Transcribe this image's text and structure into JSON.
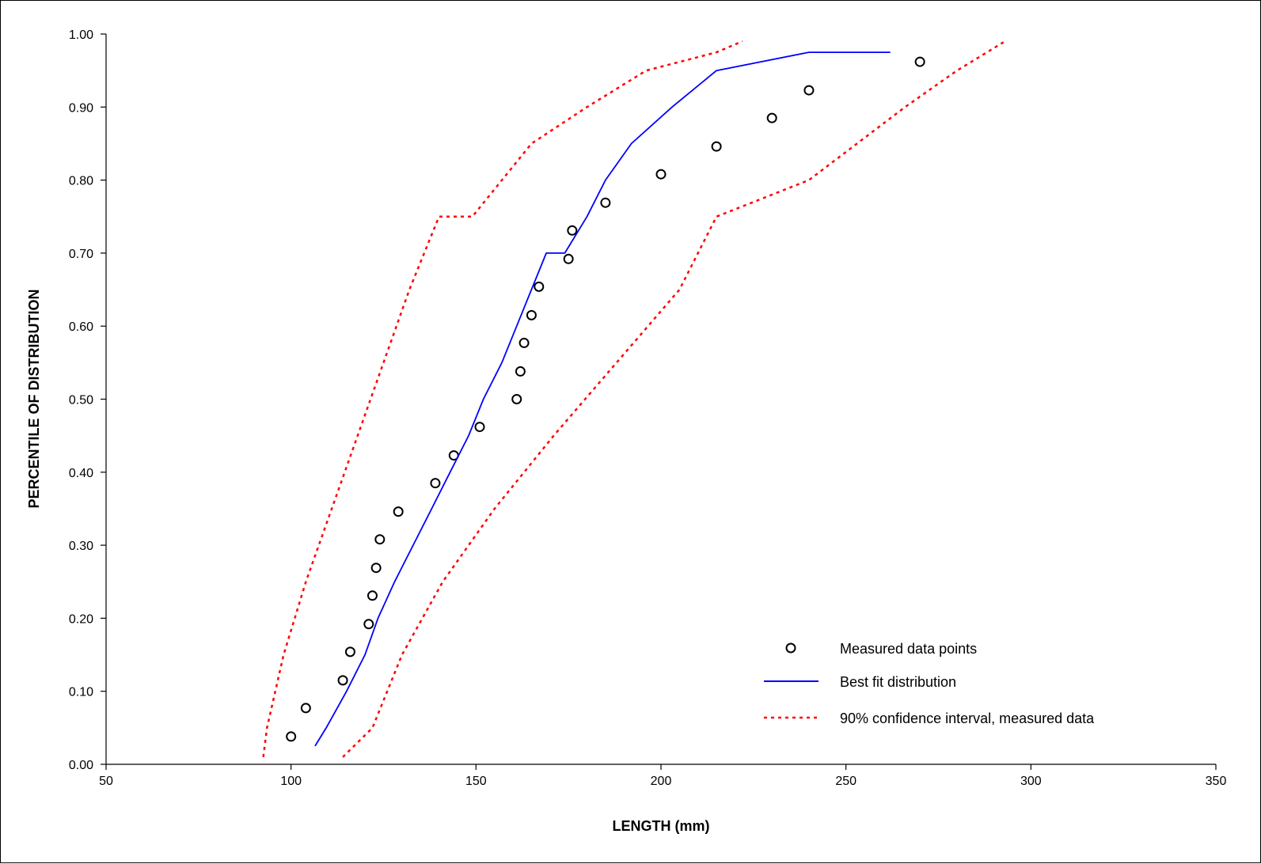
{
  "chart_data": {
    "type": "line",
    "xlabel": "LENGTH (mm)",
    "ylabel": "PERCENTILE OF DISTRIBUTION",
    "xlim": [
      50,
      350
    ],
    "ylim": [
      0,
      1
    ],
    "x_ticks": [
      "50",
      "100",
      "150",
      "200",
      "250",
      "300",
      "350"
    ],
    "y_ticks": [
      "0.00",
      "0.10",
      "0.20",
      "0.30",
      "0.40",
      "0.50",
      "0.60",
      "0.70",
      "0.80",
      "0.90",
      "1.00"
    ],
    "grid": false,
    "legend_position": "bottom-right",
    "series": [
      {
        "name": "Measured data points",
        "style": "markers",
        "marker": "open-circle",
        "color": "#000000",
        "x": [
          100,
          104,
          114,
          116,
          121,
          122,
          123,
          124,
          129,
          139,
          144,
          151,
          161,
          162,
          163,
          165,
          167,
          175,
          176,
          185,
          200,
          215,
          230,
          240,
          270
        ],
        "y": [
          0.038,
          0.077,
          0.115,
          0.154,
          0.192,
          0.231,
          0.269,
          0.308,
          0.346,
          0.385,
          0.423,
          0.462,
          0.5,
          0.538,
          0.577,
          0.615,
          0.654,
          0.692,
          0.731,
          0.769,
          0.808,
          0.846,
          0.885,
          0.923,
          0.962
        ]
      },
      {
        "name": "Best fit distribution",
        "style": "solid",
        "color": "#0000ff",
        "x": [
          106.5,
          109.5,
          115,
          120,
          123.5,
          128,
          133,
          138,
          143,
          148,
          152,
          157,
          161,
          165,
          169,
          174,
          180,
          185,
          192,
          203,
          215,
          240,
          262
        ],
        "y": [
          0.025,
          0.05,
          0.1,
          0.15,
          0.2,
          0.25,
          0.3,
          0.35,
          0.4,
          0.45,
          0.5,
          0.55,
          0.6,
          0.65,
          0.7,
          0.7,
          0.75,
          0.8,
          0.85,
          0.9,
          0.95,
          0.975,
          0.975
        ]
      },
      {
        "name": "90% confidence interval, measured data",
        "style": "dotted",
        "color": "#ff0000",
        "x": [
          92.5,
          93.5,
          98,
          104,
          111,
          118,
          125,
          132,
          140,
          149,
          165,
          180,
          196,
          215,
          222
        ],
        "y": [
          0.01,
          0.05,
          0.15,
          0.25,
          0.35,
          0.45,
          0.55,
          0.65,
          0.75,
          0.75,
          0.85,
          0.9,
          0.95,
          0.975,
          0.99
        ]
      },
      {
        "name": "",
        "style": "dotted",
        "color": "#ff0000",
        "x": [
          114,
          122,
          130,
          141,
          155,
          171,
          188,
          205,
          215,
          240,
          266,
          280,
          293
        ],
        "y": [
          0.01,
          0.05,
          0.15,
          0.25,
          0.35,
          0.45,
          0.55,
          0.65,
          0.75,
          0.8,
          0.9,
          0.95,
          0.99
        ]
      }
    ]
  }
}
